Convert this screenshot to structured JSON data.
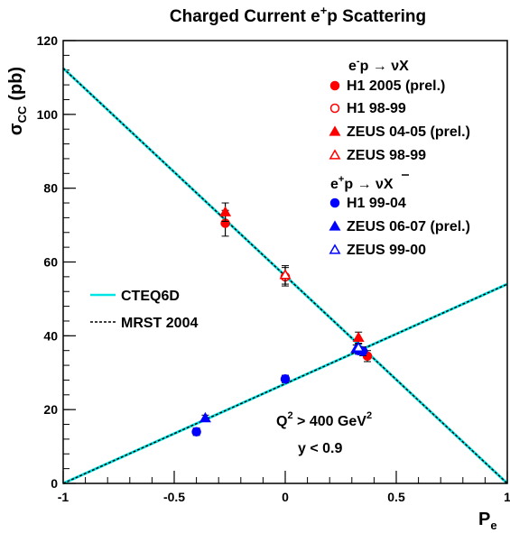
{
  "chart_data": {
    "type": "scatter",
    "title": "Charged Current e⁺p Scattering",
    "title_parts": {
      "main": "Charged Current e",
      "sup": "+",
      "tail": "p Scattering"
    },
    "xlabel": "P",
    "xlabel_sub": "e",
    "ylabel": "σ",
    "ylabel_sub": "CC",
    "ylabel_unit": "(pb)",
    "xlim": [
      -1,
      1
    ],
    "ylim": [
      0,
      120
    ],
    "x_ticks": [
      {
        "value": -1,
        "label": "-1"
      },
      {
        "value": -0.5,
        "label": "-0.5"
      },
      {
        "value": 0,
        "label": "0"
      },
      {
        "value": 0.5,
        "label": "0.5"
      },
      {
        "value": 1,
        "label": "1"
      }
    ],
    "y_ticks": [
      {
        "value": 0,
        "label": "0"
      },
      {
        "value": 20,
        "label": "20"
      },
      {
        "value": 40,
        "label": "40"
      },
      {
        "value": 60,
        "label": "60"
      },
      {
        "value": 80,
        "label": "80"
      },
      {
        "value": 100,
        "label": "100"
      },
      {
        "value": 120,
        "label": "120"
      }
    ],
    "grid": false,
    "legend_groups": [
      {
        "header": "e⁻p → νX",
        "header_parts": {
          "a": "e",
          "sup": "-",
          "b": "p → νX"
        }
      },
      {
        "header": "e⁺p → ν̄X",
        "header_parts": {
          "a": "e",
          "sup": "+",
          "b": "p → νX",
          "bar": true
        }
      }
    ],
    "theory": [
      {
        "name": "CTEQ6D",
        "color": "#00e5e5",
        "style": "solid",
        "lines": [
          {
            "x": [
              -1,
              1
            ],
            "y": [
              112.5,
              0
            ]
          },
          {
            "x": [
              -1,
              1
            ],
            "y": [
              0,
              54
            ]
          }
        ]
      },
      {
        "name": "MRST 2004",
        "color": "#000000",
        "style": "dashed",
        "lines": [
          {
            "x": [
              -1,
              1
            ],
            "y": [
              112.5,
              0
            ]
          },
          {
            "x": [
              -1,
              1
            ],
            "y": [
              0,
              54
            ]
          }
        ]
      }
    ],
    "series": [
      {
        "name": "H1 2005 (prel.)",
        "color": "#ff0000",
        "marker": "circle",
        "filled": true,
        "points": [
          {
            "x": -0.27,
            "y": 70.5,
            "err": 3.5
          },
          {
            "x": 0.37,
            "y": 34.5,
            "err": 1.5
          }
        ]
      },
      {
        "name": "H1 98-99",
        "color": "#ff0000",
        "marker": "circle",
        "filled": false,
        "points": [
          {
            "x": 0.0,
            "y": 56.0,
            "err": 2.5
          }
        ]
      },
      {
        "name": "ZEUS 04-05 (prel.)",
        "color": "#ff0000",
        "marker": "triangle",
        "filled": true,
        "points": [
          {
            "x": -0.27,
            "y": 73.5,
            "err": 2.5
          },
          {
            "x": 0.33,
            "y": 39.5,
            "err": 1.5
          }
        ]
      },
      {
        "name": "ZEUS 98-99",
        "color": "#ff0000",
        "marker": "triangle",
        "filled": false,
        "points": [
          {
            "x": 0.0,
            "y": 56.5,
            "err": 2.5
          }
        ]
      },
      {
        "name": "H1 99-04",
        "color": "#0000ff",
        "marker": "circle",
        "filled": true,
        "points": [
          {
            "x": -0.4,
            "y": 14.0,
            "err": 1.0
          },
          {
            "x": 0.0,
            "y": 28.3,
            "err": 1.0
          },
          {
            "x": 0.33,
            "y": 36.0,
            "err": 1.0
          },
          {
            "x": 0.35,
            "y": 35.8,
            "err": 1.2
          }
        ]
      },
      {
        "name": "ZEUS 06-07 (prel.)",
        "color": "#0000ff",
        "marker": "triangle",
        "filled": true,
        "points": [
          {
            "x": -0.36,
            "y": 17.7,
            "err": 0.8
          },
          {
            "x": 0.32,
            "y": 36.5,
            "err": 1.0
          }
        ]
      },
      {
        "name": "ZEUS 99-00",
        "color": "#0000ff",
        "marker": "triangle",
        "filled": false,
        "points": [
          {
            "x": 0.33,
            "y": 36.8,
            "err": 1.0
          }
        ]
      }
    ],
    "annotations": [
      {
        "text": "Q² > 400 GeV²",
        "parts": {
          "a": "Q",
          "sup1": "2",
          "b": " > 400 GeV",
          "sup2": "2"
        }
      },
      {
        "text": "y < 0.9"
      }
    ]
  }
}
